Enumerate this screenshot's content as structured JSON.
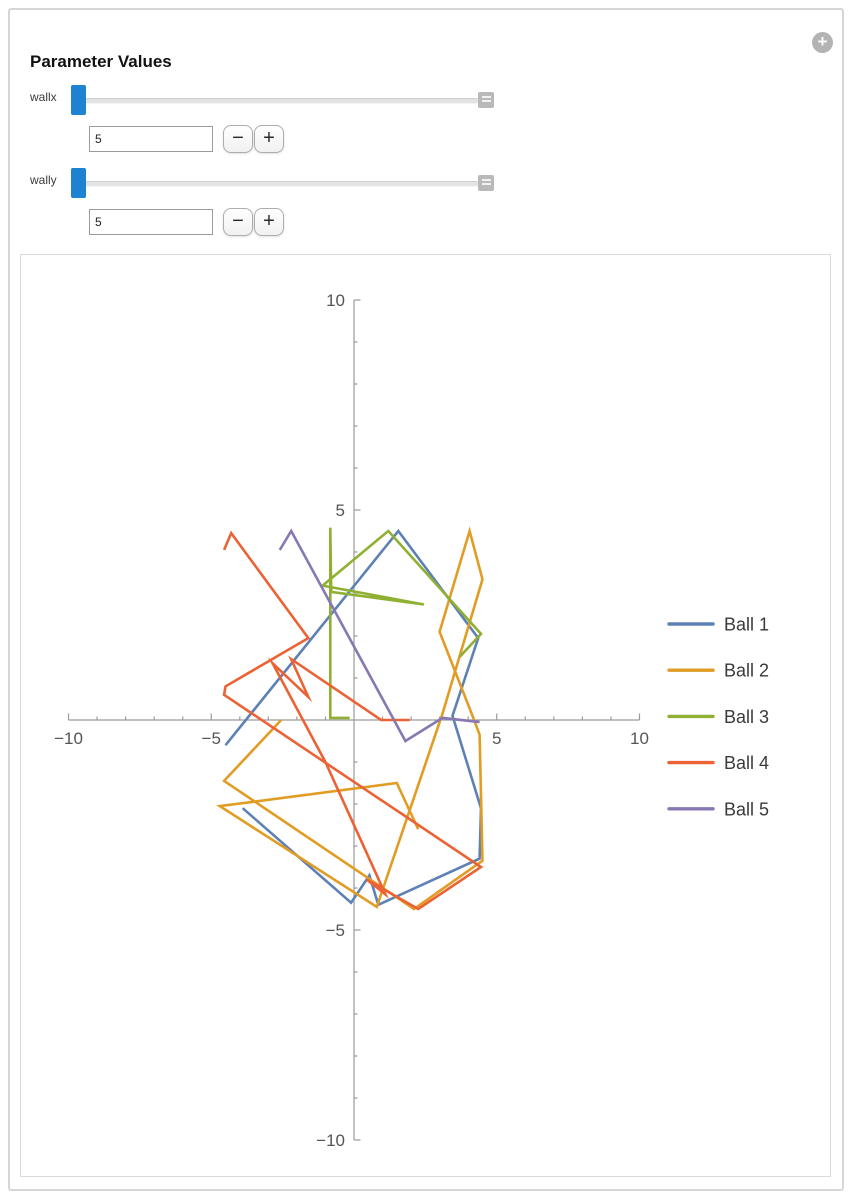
{
  "panel": {
    "title": "Parameter Values",
    "expand_icon": "plus-circle-icon",
    "expand_glyph": "+",
    "minus_label": "−",
    "plus_label": "+",
    "thumb_color": "#1e82d2",
    "sliders": [
      {
        "label": "wallx",
        "value": "5"
      },
      {
        "label": "wally",
        "value": "5"
      }
    ]
  },
  "chart_data": {
    "type": "line",
    "title": "",
    "xlabel": "",
    "ylabel": "",
    "xlim": [
      -10,
      10
    ],
    "ylim": [
      -10,
      10
    ],
    "x_major_ticks": [
      -10,
      -5,
      5,
      10
    ],
    "y_major_ticks": [
      -10,
      -5,
      5,
      10
    ],
    "x_tick_labels": [
      "−10",
      "−5",
      "5",
      "10"
    ],
    "y_tick_labels": [
      "−10",
      "−5",
      "5",
      "10"
    ],
    "minor_tick_step": 1,
    "grid": false,
    "axis_color": "#9a9a9a",
    "tick_label_color": "#555555",
    "legend_position": "right",
    "legend_text_color": "#3a3a3a",
    "series": [
      {
        "name": "Ball 1",
        "color": "#5E81B5",
        "points": [
          [
            -4.5,
            -0.6
          ],
          [
            1.55,
            4.5
          ],
          [
            4.35,
            1.95
          ],
          [
            3.45,
            0.1
          ],
          [
            4.45,
            -2.1
          ],
          [
            4.4,
            -3.3
          ],
          [
            0.85,
            -4.4
          ],
          [
            0.54,
            -3.7
          ],
          [
            -0.1,
            -4.35
          ],
          [
            -3.9,
            -2.1
          ]
        ]
      },
      {
        "name": "Ball 2",
        "color": "#E19C24",
        "points": [
          [
            -2.55,
            0.0
          ],
          [
            -4.55,
            -1.45
          ],
          [
            2.1,
            -4.5
          ],
          [
            4.5,
            -3.35
          ],
          [
            4.4,
            -0.35
          ],
          [
            4.15,
            0.1
          ],
          [
            3.0,
            2.1
          ],
          [
            4.05,
            4.5
          ],
          [
            4.5,
            3.35
          ],
          [
            3.1,
            0.15
          ],
          [
            0.8,
            -4.45
          ],
          [
            -4.7,
            -2.05
          ],
          [
            1.5,
            -1.5
          ],
          [
            2.25,
            -2.6
          ]
        ]
      },
      {
        "name": "Ball 3",
        "color": "#8FB032",
        "points": [
          [
            -0.15,
            0.05
          ],
          [
            -0.83,
            0.05
          ],
          [
            -0.83,
            4.58
          ],
          [
            -0.8,
            3.05
          ],
          [
            2.45,
            2.75
          ],
          [
            -1.1,
            3.2
          ],
          [
            1.2,
            4.5
          ],
          [
            4.45,
            2.05
          ],
          [
            3.7,
            1.5
          ]
        ]
      },
      {
        "name": "Ball 4",
        "color": "#EB6235",
        "points": [
          [
            -4.55,
            4.05
          ],
          [
            -4.3,
            4.45
          ],
          [
            -1.6,
            1.95
          ],
          [
            -4.5,
            0.8
          ],
          [
            -4.55,
            0.6
          ],
          [
            4.45,
            -3.5
          ],
          [
            2.25,
            -4.5
          ],
          [
            0.45,
            -3.8
          ],
          [
            1.1,
            -4.15
          ],
          [
            -1.0,
            -1.0
          ],
          [
            -2.85,
            1.35
          ],
          [
            -1.6,
            0.55
          ],
          [
            -2.2,
            1.45
          ],
          [
            0.95,
            0.0
          ],
          [
            1.95,
            0.0
          ]
        ]
      },
      {
        "name": "Ball 5",
        "color": "#8778B3",
        "points": [
          [
            -2.6,
            4.05
          ],
          [
            -2.2,
            4.5
          ],
          [
            1.8,
            -0.5
          ],
          [
            3.1,
            0.05
          ],
          [
            4.4,
            -0.05
          ]
        ]
      }
    ]
  }
}
